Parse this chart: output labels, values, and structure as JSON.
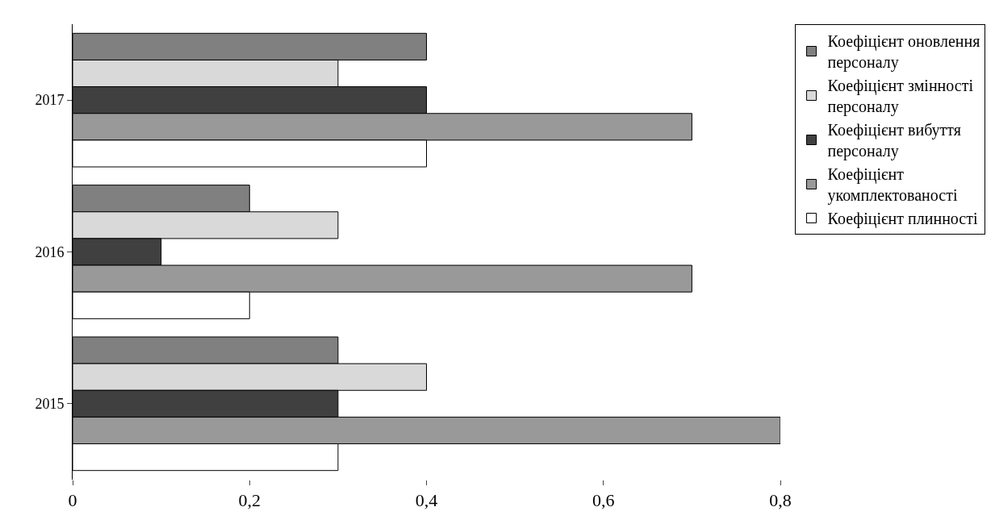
{
  "chart_data": {
    "type": "bar",
    "orientation": "horizontal",
    "categories": [
      "2017",
      "2016",
      "2015"
    ],
    "series": [
      {
        "name": "Коефіцієнт оновлення персоналу",
        "color": "#808080",
        "values": [
          0.4,
          0.2,
          0.3
        ]
      },
      {
        "name": "Коефіцієнт змінності персоналу",
        "color": "#d9d9d9",
        "values": [
          0.3,
          0.3,
          0.4
        ]
      },
      {
        "name": "Коефіцієнт вибуття персоналу",
        "color": "#404040",
        "values": [
          0.4,
          0.1,
          0.3
        ]
      },
      {
        "name": "Коефіцієнт укомплектованості",
        "color": "#999999",
        "values": [
          0.7,
          0.7,
          0.8
        ]
      },
      {
        "name": "Коефіцієнт плинності",
        "color": "#ffffff",
        "values": [
          0.4,
          0.2,
          0.3
        ]
      }
    ],
    "xlim": [
      0,
      0.8
    ],
    "xticks": [
      0,
      {
        "value": 0.2,
        "label": "0,2"
      },
      {
        "value": 0.4,
        "label": "0,4"
      },
      {
        "value": 0.6,
        "label": "0,6"
      },
      {
        "value": 0.8,
        "label": "0,8"
      }
    ],
    "grid": false,
    "legend": "right"
  }
}
